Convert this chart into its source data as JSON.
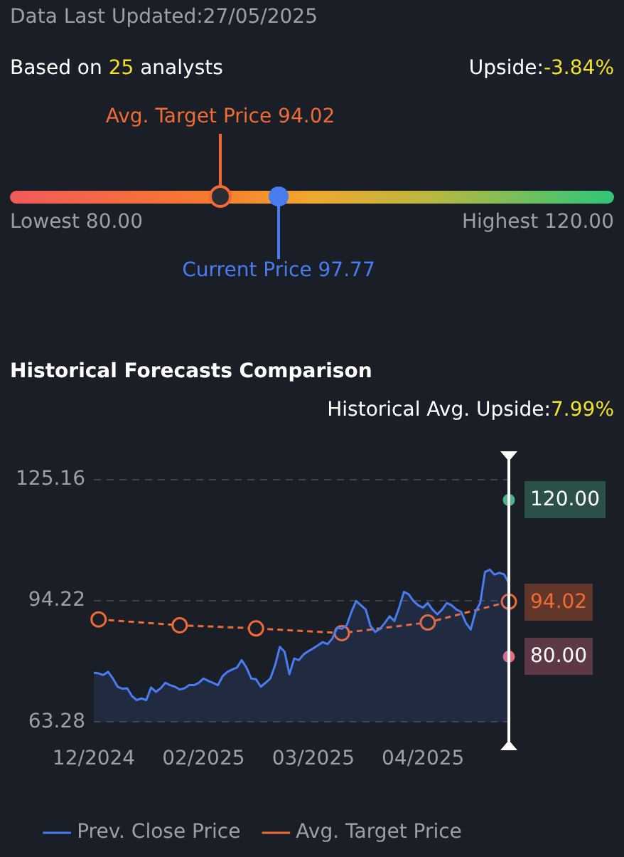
{
  "chart_data": [
    {
      "type": "other",
      "annotations": [
        "Data Last Updated:27/05/2025",
        "Based on 25 analysts",
        "Upside:-3.84%",
        "Avg. Target Price 94.02",
        "Current Price 97.77",
        "Lowest 80.00",
        "Highest 120.00"
      ]
    },
    {
      "type": "line",
      "title": "Historical Forecasts Comparison",
      "subtitle": "Historical Avg. Upside:7.99%",
      "categories": [
        "12/2024",
        null,
        null,
        null,
        null,
        null,
        null,
        null,
        null,
        null,
        null,
        null,
        null,
        null,
        null,
        null,
        null,
        null,
        null,
        null,
        null,
        null,
        null,
        "02/2025",
        null,
        null,
        null,
        null,
        null,
        null,
        null,
        null,
        null,
        null,
        null,
        null,
        null,
        null,
        null,
        null,
        null,
        null,
        null,
        null,
        null,
        null,
        "03/2025",
        null,
        null,
        null,
        null,
        null,
        null,
        null,
        null,
        null,
        null,
        null,
        null,
        null,
        null,
        null,
        null,
        null,
        null,
        null,
        null,
        null,
        null,
        "04/2025",
        null,
        null,
        null,
        null,
        null,
        null,
        null,
        null,
        null,
        null,
        null,
        null,
        null,
        null,
        null,
        null,
        null,
        null
      ],
      "series": [
        {
          "name": "Prev. Close Price",
          "type": "area",
          "color": "#4a7cf0",
          "marker": "none",
          "values": [
            75.9,
            75.7,
            75.3,
            76.1,
            74.4,
            72.3,
            71.8,
            71.9,
            69.9,
            68.9,
            69.3,
            68.9,
            72.1,
            71.0,
            71.9,
            73.3,
            72.7,
            72.3,
            71.6,
            71.9,
            72.7,
            72.7,
            73.3,
            74.4,
            73.8,
            73.3,
            72.7,
            75.0,
            76.1,
            76.7,
            77.2,
            79.1,
            77.2,
            74.4,
            74.2,
            72.3,
            73.3,
            74.4,
            77.8,
            82.5,
            81.2,
            75.5,
            79.5,
            79.1,
            80.6,
            81.4,
            82.1,
            82.9,
            83.7,
            83.2,
            84.6,
            87.4,
            87.1,
            88.0,
            91.4,
            94.2,
            93.1,
            92.0,
            87.8,
            86.3,
            87.1,
            88.6,
            90.3,
            89.1,
            92.5,
            96.5,
            95.9,
            94.2,
            93.1,
            92.5,
            93.7,
            92.0,
            90.8,
            92.0,
            93.7,
            93.1,
            92.0,
            91.4,
            88.6,
            86.9,
            91.4,
            93.7,
            101.6,
            102.2,
            100.9,
            101.4,
            101.0,
            98.8
          ]
        },
        {
          "name": "Avg. Target Price",
          "type": "line",
          "color": "#f06a33",
          "marker": "circle",
          "line_style": "dashed",
          "values": [
            null,
            89.5,
            null,
            null,
            null,
            null,
            null,
            null,
            null,
            null,
            null,
            null,
            null,
            null,
            null,
            null,
            null,
            null,
            88.0,
            null,
            null,
            null,
            null,
            null,
            null,
            null,
            null,
            null,
            null,
            null,
            null,
            null,
            null,
            null,
            87.2,
            null,
            null,
            null,
            null,
            null,
            null,
            null,
            null,
            null,
            null,
            null,
            null,
            null,
            null,
            null,
            null,
            null,
            86.0,
            null,
            null,
            null,
            null,
            null,
            null,
            null,
            null,
            null,
            null,
            null,
            null,
            null,
            null,
            null,
            null,
            null,
            88.7,
            null,
            null,
            null,
            null,
            null,
            null,
            null,
            null,
            null,
            null,
            null,
            null,
            null,
            null,
            null,
            null,
            94.02
          ],
          "value_labels": [
            null,
            null,
            null,
            null,
            null,
            null,
            null,
            null,
            null,
            null,
            null,
            null,
            null,
            null,
            null,
            null,
            null,
            null,
            null,
            null,
            null,
            null,
            null,
            null,
            null,
            null,
            null,
            null,
            null,
            null,
            null,
            null,
            null,
            null,
            null,
            null,
            null,
            null,
            null,
            null,
            null,
            null,
            null,
            null,
            null,
            null,
            null,
            null,
            null,
            null,
            null,
            null,
            null,
            null,
            null,
            null,
            null,
            null,
            null,
            null,
            null,
            null,
            null,
            null,
            null,
            null,
            null,
            null,
            null,
            null,
            null,
            null,
            null,
            null,
            null,
            null,
            null,
            null,
            null,
            null,
            null,
            null,
            null,
            null,
            null,
            null,
            null,
            "94.02"
          ]
        },
        {
          "type": "scatter",
          "color": "#4fb38a",
          "marker": "circle",
          "values": [
            null,
            null,
            null,
            null,
            null,
            null,
            null,
            null,
            null,
            null,
            null,
            null,
            null,
            null,
            null,
            null,
            null,
            null,
            null,
            null,
            null,
            null,
            null,
            null,
            null,
            null,
            null,
            null,
            null,
            null,
            null,
            null,
            null,
            null,
            null,
            null,
            null,
            null,
            null,
            null,
            null,
            null,
            null,
            null,
            null,
            null,
            null,
            null,
            null,
            null,
            null,
            null,
            null,
            null,
            null,
            null,
            null,
            null,
            null,
            null,
            null,
            null,
            null,
            null,
            null,
            null,
            null,
            null,
            null,
            null,
            null,
            null,
            null,
            null,
            null,
            null,
            null,
            null,
            null,
            null,
            null,
            null,
            null,
            null,
            null,
            null,
            null,
            120
          ],
          "value_labels": [
            null,
            null,
            null,
            null,
            null,
            null,
            null,
            null,
            null,
            null,
            null,
            null,
            null,
            null,
            null,
            null,
            null,
            null,
            null,
            null,
            null,
            null,
            null,
            null,
            null,
            null,
            null,
            null,
            null,
            null,
            null,
            null,
            null,
            null,
            null,
            null,
            null,
            null,
            null,
            null,
            null,
            null,
            null,
            null,
            null,
            null,
            null,
            null,
            null,
            null,
            null,
            null,
            null,
            null,
            null,
            null,
            null,
            null,
            null,
            null,
            null,
            null,
            null,
            null,
            null,
            null,
            null,
            null,
            null,
            null,
            null,
            null,
            null,
            null,
            null,
            null,
            null,
            null,
            null,
            null,
            null,
            null,
            null,
            null,
            null,
            null,
            null,
            "120.00"
          ]
        },
        {
          "type": "scatter",
          "color": "#e07080",
          "marker": "circle",
          "values": [
            null,
            null,
            null,
            null,
            null,
            null,
            null,
            null,
            null,
            null,
            null,
            null,
            null,
            null,
            null,
            null,
            null,
            null,
            null,
            null,
            null,
            null,
            null,
            null,
            null,
            null,
            null,
            null,
            null,
            null,
            null,
            null,
            null,
            null,
            null,
            null,
            null,
            null,
            null,
            null,
            null,
            null,
            null,
            null,
            null,
            null,
            null,
            null,
            null,
            null,
            null,
            null,
            null,
            null,
            null,
            null,
            null,
            null,
            null,
            null,
            null,
            null,
            null,
            null,
            null,
            null,
            null,
            null,
            null,
            null,
            null,
            null,
            null,
            null,
            null,
            null,
            null,
            null,
            null,
            null,
            null,
            null,
            null,
            null,
            null,
            null,
            null,
            80
          ],
          "value_labels": [
            null,
            null,
            null,
            null,
            null,
            null,
            null,
            null,
            null,
            null,
            null,
            null,
            null,
            null,
            null,
            null,
            null,
            null,
            null,
            null,
            null,
            null,
            null,
            null,
            null,
            null,
            null,
            null,
            null,
            null,
            null,
            null,
            null,
            null,
            null,
            null,
            null,
            null,
            null,
            null,
            null,
            null,
            null,
            null,
            null,
            null,
            null,
            null,
            null,
            null,
            null,
            null,
            null,
            null,
            null,
            null,
            null,
            null,
            null,
            null,
            null,
            null,
            null,
            null,
            null,
            null,
            null,
            null,
            null,
            null,
            null,
            null,
            null,
            null,
            null,
            null,
            null,
            null,
            null,
            null,
            null,
            null,
            null,
            null,
            null,
            null,
            null,
            "80.00"
          ]
        }
      ],
      "ylim": [
        63.28,
        125.16
      ],
      "yticks": [
        63.28,
        94.22,
        125.16
      ],
      "grid": "y",
      "legend": "bottom"
    }
  ]
}
